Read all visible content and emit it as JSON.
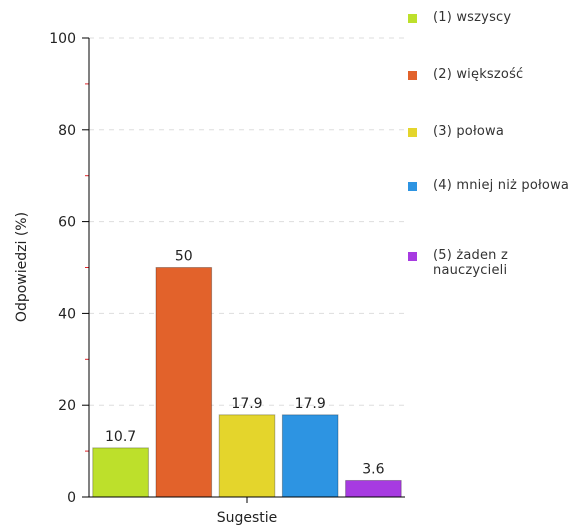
{
  "chart_data": {
    "type": "bar",
    "categories": [
      "(1) wszyscy",
      "(2) większość",
      "(3) połowa",
      "(4) mniej niż połowa",
      "(5) żaden z nauczycieli"
    ],
    "values": [
      10.7,
      50,
      17.9,
      17.9,
      3.6
    ],
    "value_labels": [
      "10.7",
      "50",
      "17.9",
      "17.9",
      "3.6"
    ],
    "colors": [
      "#bde02b",
      "#e2622b",
      "#e4d52c",
      "#2d94e2",
      "#a73be1"
    ],
    "xlabel": "Sugestie",
    "ylabel": "Odpowiedzi (%)",
    "ylim": [
      0,
      100
    ],
    "yticks": [
      0,
      20,
      40,
      60,
      80,
      100
    ],
    "grid": true,
    "legend_position": "right"
  },
  "legend": {
    "items": [
      {
        "label": "(1) wszyscy",
        "color": "#bde02b"
      },
      {
        "label": "(2) większość",
        "color": "#e2622b"
      },
      {
        "label": "(3) połowa",
        "color": "#e4d52c"
      },
      {
        "label": "(4) mniej niż połowa",
        "color": "#2d94e2"
      },
      {
        "label": "(5) żaden z nauczycieli",
        "color": "#a73be1"
      }
    ]
  }
}
